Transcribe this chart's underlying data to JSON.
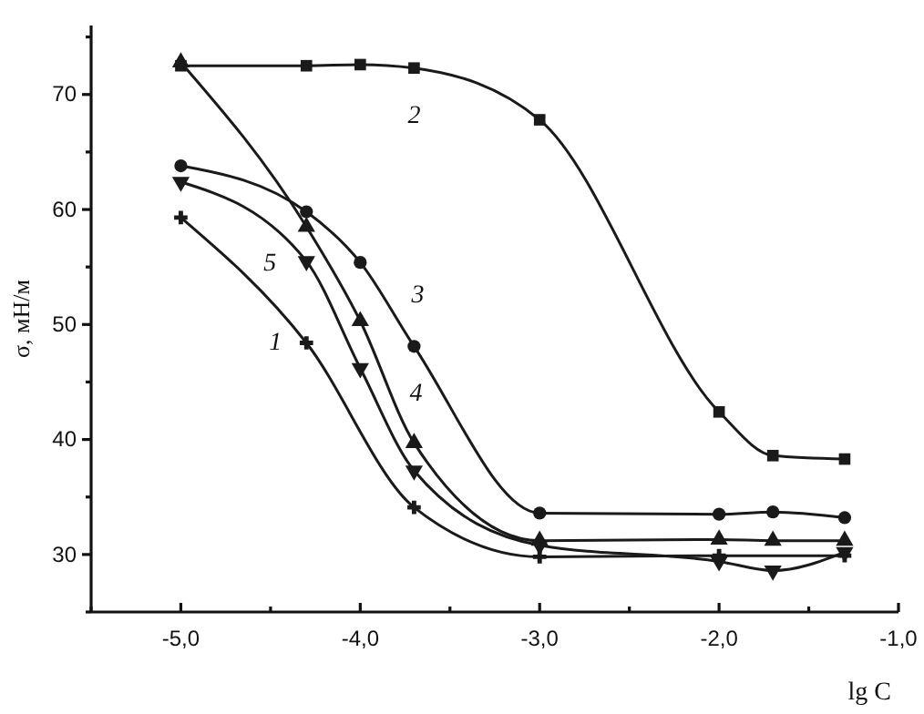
{
  "chart_data": {
    "type": "line",
    "xlabel": "lg C",
    "ylabel": "σ, мН/м",
    "xlim": [
      -5.5,
      -1.0
    ],
    "ylim": [
      25,
      76
    ],
    "xticks": [
      {
        "value": -5.5,
        "label": null
      },
      {
        "value": -5,
        "label": "-5,0"
      },
      {
        "value": -4.5,
        "label": null
      },
      {
        "value": -4,
        "label": "-4,0"
      },
      {
        "value": -3.5,
        "label": null
      },
      {
        "value": -3,
        "label": "-3,0"
      },
      {
        "value": -2.5,
        "label": null
      },
      {
        "value": -2,
        "label": "-2,0"
      },
      {
        "value": -1.5,
        "label": null
      },
      {
        "value": -1,
        "label": "-1,0"
      }
    ],
    "yticks": [
      {
        "value": 25,
        "label": null
      },
      30,
      {
        "value": 35,
        "label": null
      },
      40,
      {
        "value": 45,
        "label": null
      },
      50,
      {
        "value": 55,
        "label": null
      },
      60,
      {
        "value": 65,
        "label": null
      },
      70,
      {
        "value": 75,
        "label": null
      }
    ],
    "grid": false,
    "line_style": "solid",
    "series": [
      {
        "name": "2",
        "color": "#1a1a1a",
        "marker": "square",
        "x": [
          -5,
          -4.3,
          -4,
          -3.7,
          -3,
          -2,
          -1.7,
          -1.3
        ],
        "values": [
          72.5,
          72.5,
          72.6,
          72.3,
          67.8,
          42.4,
          38.6,
          38.3
        ]
      },
      {
        "name": "3",
        "color": "#1a1a1a",
        "marker": "circle",
        "x": [
          -5,
          -4.3,
          -4,
          -3.7,
          -3,
          -2,
          -1.7,
          -1.3
        ],
        "values": [
          63.8,
          59.8,
          55.4,
          48.1,
          33.6,
          33.5,
          33.7,
          33.2
        ]
      },
      {
        "name": "4",
        "color": "#1a1a1a",
        "marker": "triangle",
        "x": [
          -5,
          -4.3,
          -4,
          -3.7,
          -3,
          -2,
          -1.7,
          -1.3
        ],
        "values": [
          72.8,
          58.5,
          50.3,
          39.7,
          31.2,
          31.3,
          31.2,
          31.2
        ]
      },
      {
        "name": "5",
        "color": "#1a1a1a",
        "marker": "triangle-down",
        "x": [
          -5,
          -4.3,
          -4,
          -3.7,
          -3,
          -2,
          -1.7,
          -1.3
        ],
        "values": [
          62.4,
          55.5,
          46.2,
          37.3,
          30.8,
          29.4,
          28.6,
          30.2
        ]
      },
      {
        "name": "1",
        "color": "#1a1a1a",
        "marker": "cross",
        "x": [
          -5,
          -4.3,
          -3.7,
          -3,
          -2,
          -1.3
        ],
        "values": [
          59.3,
          48.4,
          34.1,
          29.8,
          29.9,
          29.9
        ]
      }
    ]
  }
}
